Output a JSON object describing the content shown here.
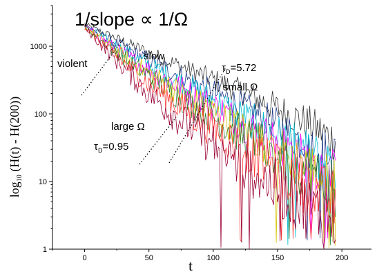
{
  "chart_data": {
    "type": "line",
    "title": "1/slope ∝ 1/Ω",
    "xlabel": "t",
    "ylabel_parts": {
      "lead": "log",
      "sub": "10",
      "rest": " (H(t) - H(200))"
    },
    "xlim": [
      -25,
      223
    ],
    "ylim": [
      1,
      4000
    ],
    "yscale": "log",
    "xticks": [
      0,
      50,
      100,
      150,
      200
    ],
    "yticks": [
      1,
      10,
      100,
      1000
    ],
    "grid": false,
    "legend": "none",
    "series": [
      {
        "color": "#333333",
        "values": [
          [
            0,
            2100
          ],
          [
            25,
            1300
          ],
          [
            50,
            800
          ],
          [
            75,
            500
          ],
          [
            100,
            320
          ],
          [
            125,
            200
          ],
          [
            150,
            120
          ],
          [
            175,
            70
          ],
          [
            195,
            40
          ]
        ]
      },
      {
        "color": "#1e3a8a",
        "values": [
          [
            0,
            2050
          ],
          [
            25,
            1100
          ],
          [
            50,
            620
          ],
          [
            75,
            360
          ],
          [
            100,
            210
          ],
          [
            125,
            120
          ],
          [
            150,
            65
          ],
          [
            175,
            34
          ],
          [
            195,
            22
          ]
        ]
      },
      {
        "color": "#00bcd4",
        "values": [
          [
            0,
            2000
          ],
          [
            25,
            1000
          ],
          [
            50,
            520
          ],
          [
            75,
            290
          ],
          [
            100,
            160
          ],
          [
            125,
            88
          ],
          [
            150,
            48
          ],
          [
            175,
            26
          ],
          [
            195,
            16
          ]
        ]
      },
      {
        "color": "#ff00ff",
        "values": [
          [
            0,
            2000
          ],
          [
            25,
            900
          ],
          [
            50,
            450
          ],
          [
            75,
            240
          ],
          [
            100,
            130
          ],
          [
            125,
            70
          ],
          [
            150,
            38
          ],
          [
            175,
            20
          ],
          [
            195,
            12
          ]
        ]
      },
      {
        "color": "#d4c400",
        "values": [
          [
            0,
            1950
          ],
          [
            25,
            850
          ],
          [
            50,
            400
          ],
          [
            75,
            200
          ],
          [
            100,
            105
          ],
          [
            125,
            55
          ],
          [
            150,
            30
          ],
          [
            175,
            16
          ],
          [
            195,
            9
          ]
        ]
      },
      {
        "color": "#2e7d32",
        "values": [
          [
            0,
            1950
          ],
          [
            25,
            800
          ],
          [
            50,
            360
          ],
          [
            75,
            175
          ],
          [
            100,
            90
          ],
          [
            125,
            46
          ],
          [
            150,
            24
          ],
          [
            175,
            13
          ],
          [
            195,
            8
          ]
        ]
      },
      {
        "color": "#ff3333",
        "values": [
          [
            0,
            1900
          ],
          [
            25,
            700
          ],
          [
            50,
            280
          ],
          [
            75,
            125
          ],
          [
            100,
            60
          ],
          [
            125,
            30
          ],
          [
            150,
            15
          ],
          [
            175,
            8
          ],
          [
            195,
            5
          ]
        ]
      },
      {
        "color": "#990033",
        "values": [
          [
            0,
            1900
          ],
          [
            25,
            600
          ],
          [
            50,
            200
          ],
          [
            75,
            80
          ],
          [
            100,
            35
          ],
          [
            125,
            16
          ],
          [
            150,
            8
          ],
          [
            175,
            4
          ],
          [
            195,
            2.5
          ]
        ]
      }
    ],
    "annotations": {
      "violent": "violent",
      "slow": "slow",
      "tau_high": {
        "lead": "τ",
        "sub": "D",
        "rest": "=5.72"
      },
      "small_omega": "small Ω",
      "large_omega": "large Ω",
      "tau_low": {
        "lead": "τ",
        "sub": "D",
        "rest": "=0.95"
      }
    }
  }
}
